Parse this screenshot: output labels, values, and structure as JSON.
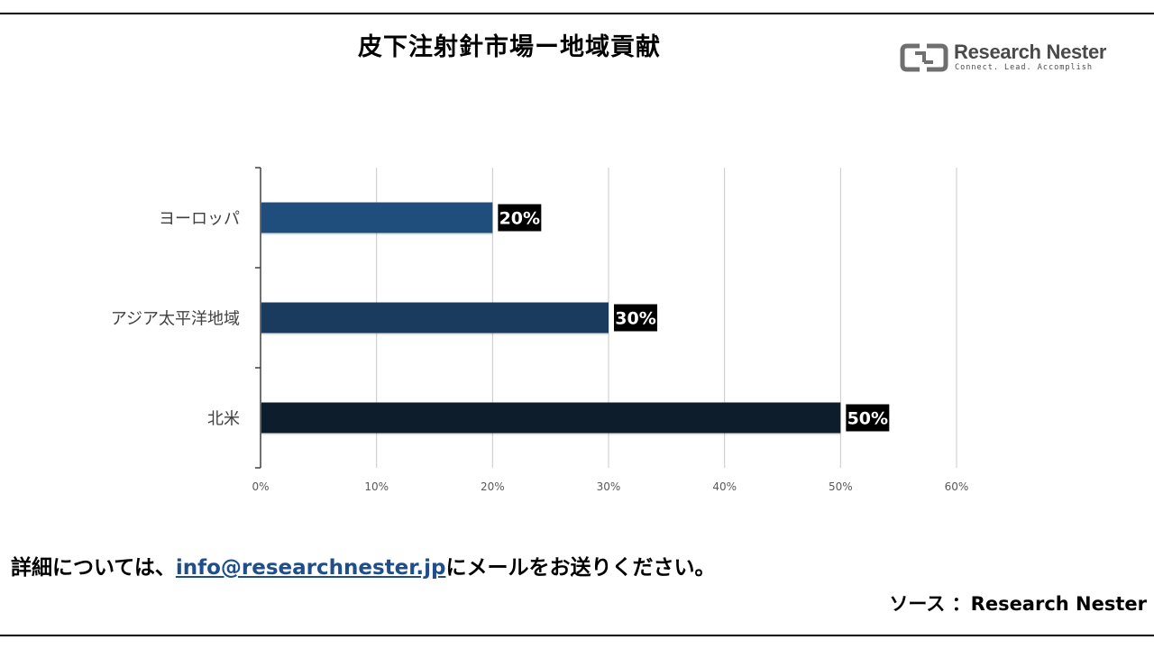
{
  "title": "皮下注射針市場ー地域貢献",
  "logo": {
    "name": "Research Nester",
    "tagline": "Connect. Lead. Accomplish",
    "icon": "research-nester-logo-icon"
  },
  "chart_data": {
    "type": "bar",
    "orientation": "horizontal",
    "categories": [
      "ヨーロッパ",
      "アジア太平洋地域",
      "北米"
    ],
    "values": [
      20,
      30,
      50
    ],
    "value_labels": [
      "20%",
      "30%",
      "50%"
    ],
    "bar_colors": [
      "#1f4e7d",
      "#1a3a5e",
      "#0e1d2b"
    ],
    "xlim": [
      0,
      60
    ],
    "x_ticks": [
      0,
      10,
      20,
      30,
      40,
      50,
      60
    ],
    "x_tick_labels": [
      "0%",
      "10%",
      "20%",
      "30%",
      "40%",
      "50%",
      "60%"
    ],
    "grid": true,
    "legend": "none"
  },
  "footer": {
    "text_before": "詳細については、",
    "email": "info@researchnester.jp",
    "text_after": "にメールをお送りください。"
  },
  "source": "ソース ：Research Nester",
  "colors": {
    "link": "#1f4e8a",
    "label_bg": "#000000",
    "label_text": "#ffffff"
  }
}
